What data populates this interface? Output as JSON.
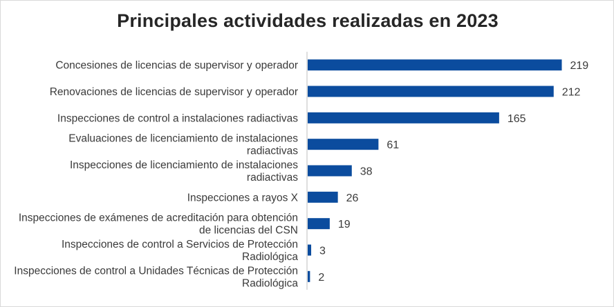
{
  "chart_data": {
    "type": "bar",
    "orientation": "horizontal",
    "title": "Principales actividades realizadas en 2023",
    "xlabel": "",
    "ylabel": "",
    "grid": false,
    "legend": "none",
    "categories": [
      "Concesiones de licencias de supervisor y operador",
      "Renovaciones de licencias de supervisor y operador",
      "Inspecciones de control a instalaciones radiactivas",
      "Evaluaciones de licenciamiento de instalaciones radiactivas",
      "Inspecciones de licenciamiento de instalaciones radiactivas",
      "Inspecciones a rayos X",
      "Inspecciones de exámenes de acreditación para obtención de licencias del CSN",
      "Inspecciones de control a Servicios de Protección Radiológica",
      "Inspecciones de control a Unidades Técnicas de Protección Radiológica"
    ],
    "label_lines": [
      [
        "Concesiones de licencias de supervisor y operador"
      ],
      [
        "Renovaciones de licencias de supervisor y operador"
      ],
      [
        "Inspecciones de control a instalaciones radiactivas"
      ],
      [
        "Evaluaciones de licenciamiento de instalaciones",
        "radiactivas"
      ],
      [
        "Inspecciones de licenciamiento de instalaciones",
        "radiactivas"
      ],
      [
        "Inspecciones a rayos X"
      ],
      [
        "Inspecciones de exámenes de acreditación para obtención",
        "de licencias del CSN"
      ],
      [
        "Inspecciones de control a Servicios de Protección",
        "Radiológica"
      ],
      [
        "Inspecciones de control a Unidades Técnicas de Protección",
        "Radiológica"
      ]
    ],
    "values": [
      219,
      212,
      165,
      61,
      38,
      26,
      19,
      3,
      2
    ],
    "xlim": [
      0,
      260
    ],
    "bar_color": "#0b4c9e",
    "axis_color": "#bfbfbf"
  }
}
